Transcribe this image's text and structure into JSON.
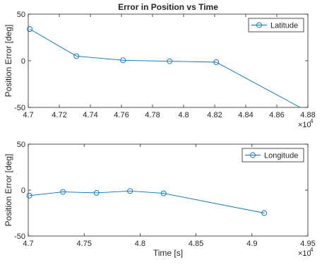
{
  "chart_data": [
    {
      "type": "line",
      "title": "Error in Position vs Time",
      "xlabel": "",
      "ylabel": "Position Error [deg]",
      "xlim": [
        47000,
        48800
      ],
      "ylim": [
        -50,
        50
      ],
      "x_exponent_label": "×10",
      "x_exponent_power": "4",
      "x_ticks": [
        47000,
        47200,
        47400,
        47600,
        47800,
        48000,
        48200,
        48400,
        48600,
        48800
      ],
      "x_tick_labels": [
        "4.7",
        "4.72",
        "4.74",
        "4.76",
        "4.78",
        "4.8",
        "4.82",
        "4.84",
        "4.86",
        "4.88"
      ],
      "y_ticks": [
        -50,
        0,
        50
      ],
      "y_tick_labels": [
        "-50",
        "0",
        "50"
      ],
      "legend_position": "top-right",
      "color": "#0072bd",
      "series": [
        {
          "name": "Latitude",
          "x": [
            47010,
            47310,
            47610,
            47910,
            48210,
            48750
          ],
          "y": [
            34,
            5,
            0.5,
            -0.5,
            -1.5,
            -50
          ],
          "markers": [
            true,
            true,
            true,
            true,
            true,
            false
          ]
        }
      ]
    },
    {
      "type": "line",
      "title": "",
      "xlabel": "Time [s]",
      "ylabel": "Position Error [deg]",
      "xlim": [
        47000,
        49500
      ],
      "ylim": [
        -50,
        50
      ],
      "x_exponent_label": "×10",
      "x_exponent_power": "4",
      "x_ticks": [
        47000,
        47500,
        48000,
        48500,
        49000,
        49500
      ],
      "x_tick_labels": [
        "4.7",
        "4.75",
        "4.8",
        "4.85",
        "4.9",
        "4.95"
      ],
      "y_ticks": [
        -50,
        0,
        50
      ],
      "y_tick_labels": [
        "-50",
        "0",
        "50"
      ],
      "legend_position": "top-right",
      "color": "#0072bd",
      "series": [
        {
          "name": "Longitude",
          "x": [
            47010,
            47310,
            47610,
            47910,
            48210,
            49110
          ],
          "y": [
            -6,
            -2,
            -3,
            -1,
            -3.5,
            -25
          ],
          "markers": [
            true,
            true,
            true,
            true,
            true,
            true
          ]
        }
      ]
    }
  ]
}
